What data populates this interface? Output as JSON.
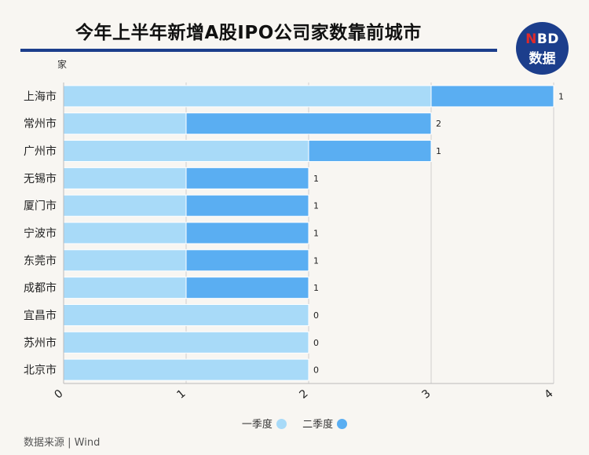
{
  "header": {
    "title": "今年上半年新增A股IPO公司家数靠前城市",
    "logo_top_red": "N",
    "logo_top_rest": "BD",
    "logo_bottom": "数据"
  },
  "chart_data": {
    "type": "bar",
    "orientation": "horizontal",
    "stacked": true,
    "unit_label": "家",
    "categories": [
      "上海市",
      "常州市",
      "广州市",
      "无锡市",
      "厦门市",
      "宁波市",
      "东莞市",
      "成都市",
      "宜昌市",
      "苏州市",
      "北京市"
    ],
    "series": [
      {
        "name": "一季度",
        "color": "#a8daf8",
        "values": [
          3,
          1,
          2,
          1,
          1,
          1,
          1,
          1,
          2,
          2,
          2
        ]
      },
      {
        "name": "二季度",
        "color": "#5aaef2",
        "values": [
          1,
          2,
          1,
          1,
          1,
          1,
          1,
          1,
          0,
          0,
          0
        ]
      }
    ],
    "data_labels": [
      "1",
      "2",
      "1",
      "1",
      "1",
      "1",
      "1",
      "1",
      "0",
      "0",
      "0"
    ],
    "xlim": [
      0,
      4
    ],
    "x_ticks": [
      "0",
      "1",
      "2",
      "3",
      "4"
    ],
    "grid": true,
    "legend_position": "bottom"
  },
  "source": "数据来源 | Wind"
}
